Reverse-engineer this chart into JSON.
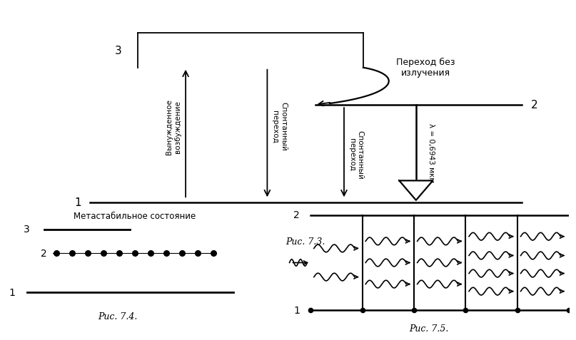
{
  "bg_color": "#ffffff",
  "black": "#000000",
  "fig73_caption": "Рис. 7.3.",
  "fig74_caption": "Рис. 7.4.",
  "fig75_caption": "Рис. 7.5.",
  "fig74_meta_label": "Метастабильное состояние",
  "text_forced": "Вынужденное\nвозбуждение",
  "text_spont1": "Спонтанный\nпереход",
  "text_spont2": "Спонтанный\nпереход",
  "text_radiationless": "Переход без\nизлучения",
  "text_lambda": "λ = 0,6943 мкм"
}
